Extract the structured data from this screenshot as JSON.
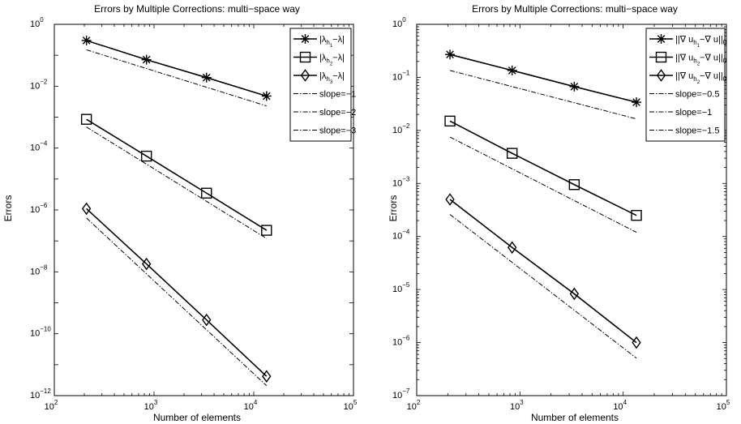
{
  "chart_data": [
    {
      "type": "line",
      "title": "Errors by Multiple Corrections: multi−space way",
      "xlabel": "Number of elements",
      "ylabel": "Errors",
      "xscale": "log",
      "yscale": "log",
      "xlim": [
        100,
        100000
      ],
      "ylim": [
        1e-12,
        1
      ],
      "x_ticks": [
        100,
        1000,
        10000,
        100000
      ],
      "x_tick_labels": [
        {
          "base": "10",
          "exp": "2"
        },
        {
          "base": "10",
          "exp": "3"
        },
        {
          "base": "10",
          "exp": "4"
        },
        {
          "base": "10",
          "exp": "5"
        }
      ],
      "y_ticks": [
        1e-12,
        1e-10,
        1e-08,
        1e-06,
        0.0001,
        0.01,
        1
      ],
      "y_tick_labels": [
        {
          "base": "10",
          "exp": "−12"
        },
        {
          "base": "10",
          "exp": "−10"
        },
        {
          "base": "10",
          "exp": "−8"
        },
        {
          "base": "10",
          "exp": "−6"
        },
        {
          "base": "10",
          "exp": "−4"
        },
        {
          "base": "10",
          "exp": "−2"
        },
        {
          "base": "10",
          "exp": "0"
        }
      ],
      "grid": false,
      "legend_position": "top-right",
      "series": [
        {
          "name": "|λ_{h_1} − λ|",
          "style": "solid",
          "marker": "asterisk",
          "x": [
            210,
            840,
            3360,
            13440
          ],
          "y": [
            0.3,
            0.072,
            0.019,
            0.0048
          ]
        },
        {
          "name": "|λ_{h_2} − λ|",
          "style": "solid",
          "marker": "square",
          "x": [
            210,
            840,
            3360,
            13440
          ],
          "y": [
            0.00085,
            5.5e-05,
            3.5e-06,
            2.2e-07
          ]
        },
        {
          "name": "|λ_{h_3} − λ|",
          "style": "solid",
          "marker": "diamond",
          "x": [
            210,
            840,
            3360,
            13440
          ],
          "y": [
            1.1e-06,
            1.8e-08,
            2.8e-10,
            4.2e-12
          ]
        },
        {
          "name": "slope=−1",
          "style": "dashdot",
          "marker": "none",
          "x": [
            210,
            13440
          ],
          "y": [
            0.15,
            0.0023
          ]
        },
        {
          "name": "slope=−2",
          "style": "dashdot",
          "marker": "none",
          "x": [
            210,
            13440
          ],
          "y": [
            0.00048,
            1.2e-07
          ]
        },
        {
          "name": "slope=−3",
          "style": "dashdot",
          "marker": "none",
          "x": [
            210,
            13440
          ],
          "y": [
            5.5e-07,
            2.1e-12
          ]
        }
      ],
      "legend": [
        {
          "kind": "sym",
          "base": "|λ",
          "sub": "h",
          "subsub": "1",
          "tail": "−λ|",
          "style": "solid",
          "marker": "asterisk"
        },
        {
          "kind": "sym",
          "base": "|λ",
          "sub": "h",
          "subsub": "2",
          "tail": "−λ|",
          "style": "solid",
          "marker": "square"
        },
        {
          "kind": "sym",
          "base": "|λ",
          "sub": "h",
          "subsub": "3",
          "tail": "−λ|",
          "style": "solid",
          "marker": "diamond"
        },
        {
          "kind": "plain",
          "text": "slope=−1",
          "style": "dashdot",
          "marker": "none"
        },
        {
          "kind": "plain",
          "text": "slope=−2",
          "style": "dashdot",
          "marker": "none"
        },
        {
          "kind": "plain",
          "text": "slope=−3",
          "style": "dashdot",
          "marker": "none"
        }
      ]
    },
    {
      "type": "line",
      "title": "Errors by Multiple Corrections: multi−space way",
      "xlabel": "Number of elements",
      "ylabel": "Errors",
      "xscale": "log",
      "yscale": "log",
      "xlim": [
        100,
        100000
      ],
      "ylim": [
        1e-07,
        1
      ],
      "x_ticks": [
        100,
        1000,
        10000,
        100000
      ],
      "x_tick_labels": [
        {
          "base": "10",
          "exp": "2"
        },
        {
          "base": "10",
          "exp": "3"
        },
        {
          "base": "10",
          "exp": "4"
        },
        {
          "base": "10",
          "exp": "5"
        }
      ],
      "y_ticks": [
        1e-07,
        1e-06,
        1e-05,
        0.0001,
        0.001,
        0.01,
        0.1,
        1
      ],
      "y_tick_labels": [
        {
          "base": "10",
          "exp": "−7"
        },
        {
          "base": "10",
          "exp": "−6"
        },
        {
          "base": "10",
          "exp": "−5"
        },
        {
          "base": "10",
          "exp": "−4"
        },
        {
          "base": "10",
          "exp": "−3"
        },
        {
          "base": "10",
          "exp": "−2"
        },
        {
          "base": "10",
          "exp": "−1"
        },
        {
          "base": "10",
          "exp": "0"
        }
      ],
      "grid": false,
      "legend_position": "top-right",
      "series": [
        {
          "name": "||∇ u_{h_1} − ∇ u||_0",
          "style": "solid",
          "marker": "asterisk",
          "x": [
            210,
            840,
            3360,
            13440
          ],
          "y": [
            0.27,
            0.135,
            0.067,
            0.034
          ]
        },
        {
          "name": "||∇ u_{h_2} − ∇ u||_0",
          "style": "solid",
          "marker": "square",
          "x": [
            210,
            840,
            3360,
            13440
          ],
          "y": [
            0.015,
            0.0037,
            0.00095,
            0.00025
          ]
        },
        {
          "name": "||∇ u_{h_2} − ∇ u||_0",
          "style": "solid",
          "marker": "diamond",
          "x": [
            210,
            840,
            3360,
            13440
          ],
          "y": [
            0.0005,
            6.2e-05,
            8.3e-06,
            1e-06
          ]
        },
        {
          "name": "slope=−0.5",
          "style": "dashdot",
          "marker": "none",
          "x": [
            210,
            13440
          ],
          "y": [
            0.135,
            0.0165
          ]
        },
        {
          "name": "slope=−1",
          "style": "dashdot",
          "marker": "none",
          "x": [
            210,
            13440
          ],
          "y": [
            0.0075,
            0.00012
          ]
        },
        {
          "name": "slope=−1.5",
          "style": "dashdot",
          "marker": "none",
          "x": [
            210,
            13440
          ],
          "y": [
            0.00026,
            5.1e-07
          ]
        }
      ],
      "legend": [
        {
          "kind": "sym",
          "base": "||∇ u",
          "sub": "h",
          "subsub": "1",
          "tail": "−∇ u||",
          "tailsub": "0",
          "style": "solid",
          "marker": "asterisk"
        },
        {
          "kind": "sym",
          "base": "||∇ u",
          "sub": "h",
          "subsub": "2",
          "tail": "−∇ u||",
          "tailsub": "0",
          "style": "solid",
          "marker": "square"
        },
        {
          "kind": "sym",
          "base": "||∇ u",
          "sub": "h",
          "subsub": "2",
          "tail": "−∇ u||",
          "tailsub": "0",
          "style": "solid",
          "marker": "diamond"
        },
        {
          "kind": "plain",
          "text": "slope=−0.5",
          "style": "dashdot",
          "marker": "none"
        },
        {
          "kind": "plain",
          "text": "slope=−1",
          "style": "dashdot",
          "marker": "none"
        },
        {
          "kind": "plain",
          "text": "slope=−1.5",
          "style": "dashdot",
          "marker": "none"
        }
      ]
    }
  ]
}
